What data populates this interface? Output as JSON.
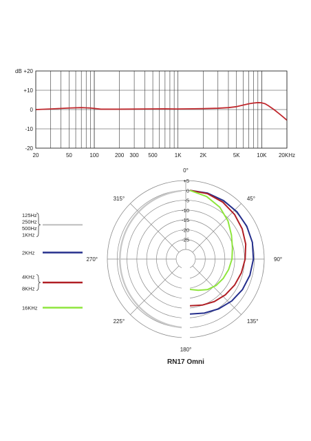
{
  "chart_data": [
    {
      "type": "line",
      "title": "",
      "xlabel": "",
      "ylabel": "dB",
      "x_scale": "log",
      "xlim": [
        20,
        20000
      ],
      "ylim": [
        -20,
        20
      ],
      "grid": true,
      "x_tick_labels": [
        {
          "value": 20,
          "label": "20"
        },
        {
          "value": 50,
          "label": "50"
        },
        {
          "value": 100,
          "label": "100"
        },
        {
          "value": 200,
          "label": "200"
        },
        {
          "value": 300,
          "label": "300"
        },
        {
          "value": 500,
          "label": "500"
        },
        {
          "value": 1000,
          "label": "1K"
        },
        {
          "value": 2000,
          "label": "2K"
        },
        {
          "value": 5000,
          "label": "5K"
        },
        {
          "value": 10000,
          "label": "10K"
        },
        {
          "value": 20000,
          "label": "20KHz"
        }
      ],
      "y_tick_labels": [
        {
          "value": 20,
          "label": "+20"
        },
        {
          "value": 10,
          "label": "+10"
        },
        {
          "value": 0,
          "label": "0"
        },
        {
          "value": -10,
          "label": "-10"
        },
        {
          "value": -20,
          "label": "-20"
        }
      ],
      "series": [
        {
          "color": "#c0282d",
          "x": [
            20,
            30,
            50,
            70,
            90,
            120,
            200,
            400,
            700,
            1000,
            1500,
            2000,
            3000,
            4000,
            5000,
            6000,
            7000,
            8000,
            9000,
            10000,
            11000,
            12000,
            14000,
            16000,
            18000,
            20000
          ],
          "y": [
            0,
            0.3,
            0.8,
            1.0,
            0.8,
            0.2,
            0.2,
            0.3,
            0.4,
            0.3,
            0.4,
            0.5,
            0.7,
            1.0,
            1.5,
            2.3,
            3.0,
            3.4,
            3.6,
            3.5,
            3.0,
            2.0,
            0.0,
            -2.0,
            -3.8,
            -5.5
          ]
        }
      ]
    },
    {
      "type": "polar",
      "title": "RN17 Omni",
      "r_ticks": [
        "+5",
        "0",
        "-5",
        "-10",
        "-15",
        "-20",
        "-25"
      ],
      "rlim": [
        -30,
        5
      ],
      "angle_labels": [
        "0°",
        "45°",
        "90°",
        "135°",
        "180°",
        "225°",
        "270°",
        "315°"
      ],
      "legend": [
        {
          "labels": [
            "125Hz",
            "250Hz",
            "500Hz",
            "1KHz"
          ],
          "color": "#c8c8c8"
        },
        {
          "labels": [
            "2KHz"
          ],
          "color": "#242e8c"
        },
        {
          "labels": [
            "4KHz",
            "8KHz"
          ],
          "color": "#b01e24"
        },
        {
          "labels": [
            "16KHz"
          ],
          "color": "#8ee63c"
        }
      ],
      "series": [
        {
          "name": "125Hz / 250Hz / 500Hz / 1KHz",
          "color": "#c8c8c8",
          "side": "left",
          "angles_deg": [
            0,
            30,
            60,
            90,
            120,
            150,
            180
          ],
          "db": [
            0,
            0,
            0,
            0,
            0,
            0,
            0
          ]
        },
        {
          "name": "2KHz",
          "color": "#242e8c",
          "angles_deg": [
            0,
            15,
            30,
            45,
            60,
            75,
            90,
            105,
            120,
            135,
            150,
            165,
            180
          ],
          "db": [
            0,
            -0.2,
            -0.6,
            -1.0,
            -1.5,
            -2.0,
            -2.6,
            -3.3,
            -4.0,
            -4.8,
            -5.7,
            -6.5,
            -7.0
          ]
        },
        {
          "name": "4KHz / 8KHz",
          "color": "#b01e24",
          "angles_deg": [
            0,
            15,
            30,
            45,
            60,
            75,
            90,
            105,
            120,
            135,
            150,
            165,
            180
          ],
          "db": [
            0,
            -0.5,
            -1.5,
            -2.8,
            -4.2,
            -5.5,
            -6.8,
            -7.8,
            -8.6,
            -9.3,
            -10.0,
            -10.7,
            -11.2
          ]
        },
        {
          "name": "16KHz",
          "color": "#8ee63c",
          "angles_deg": [
            0,
            15,
            30,
            45,
            60,
            75,
            90,
            105,
            120,
            135,
            150,
            165,
            180
          ],
          "db": [
            0,
            -2.0,
            -4.5,
            -7.5,
            -10.5,
            -12.5,
            -13.5,
            -14.5,
            -15.3,
            -16.0,
            -17.0,
            -18.5,
            -19.5
          ]
        }
      ]
    }
  ]
}
